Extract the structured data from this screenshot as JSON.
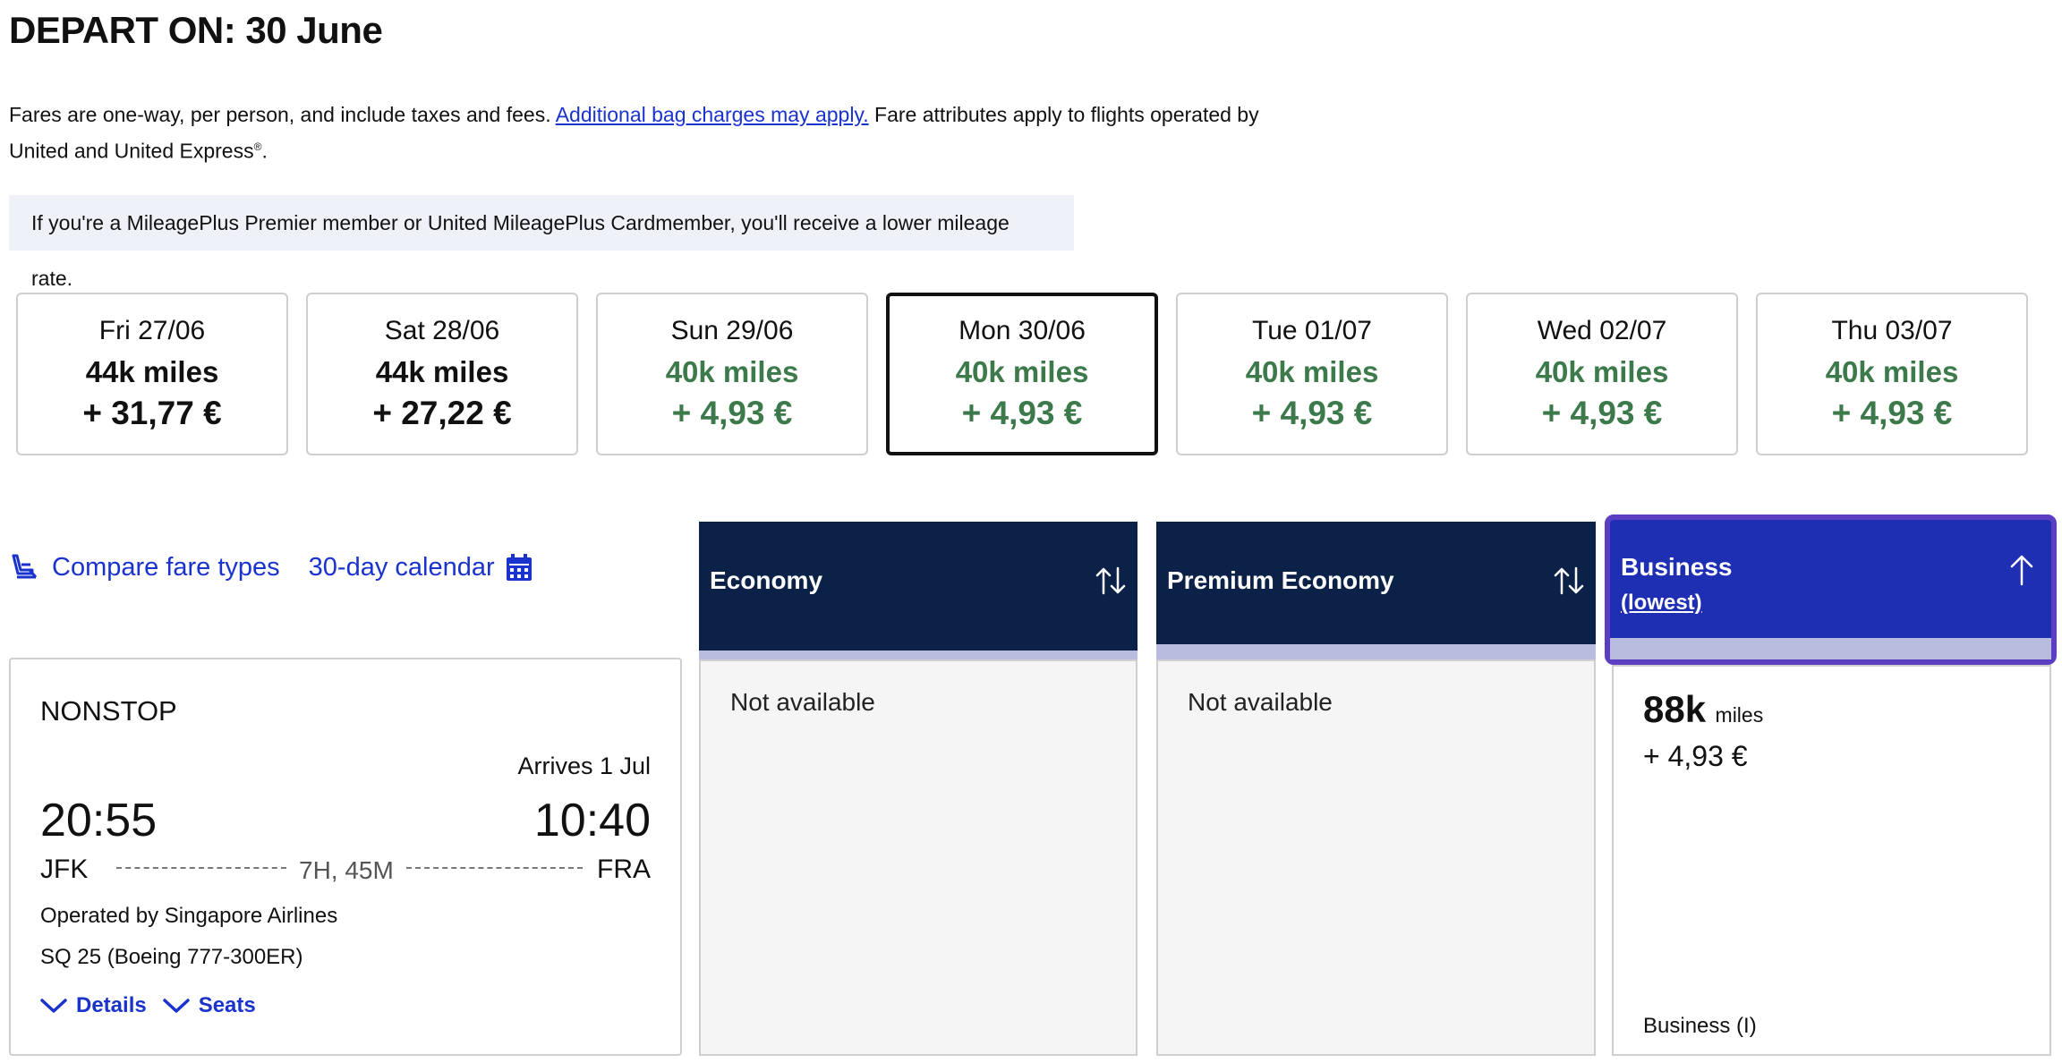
{
  "header": {
    "title": "DEPART ON: 30 June"
  },
  "fare_info": {
    "text_before": "Fares are one-way, per person, and include taxes and fees.",
    "link": "Additional bag charges may apply.",
    "text_after": "Fare attributes apply to flights operated by United and United Express",
    "registered_mark": "®",
    "period": "."
  },
  "notice": {
    "text": "If you're a MileagePlus Premier member or United MileagePlus Cardmember, you'll receive a lower mileage rate."
  },
  "dates": [
    {
      "label": "Fri 27/06",
      "miles": "44k miles",
      "price": "+ 31,77 €",
      "selected": false,
      "lowest": false
    },
    {
      "label": "Sat 28/06",
      "miles": "44k miles",
      "price": "+ 27,22 €",
      "selected": false,
      "lowest": false
    },
    {
      "label": "Sun 29/06",
      "miles": "40k miles",
      "price": "+ 4,93 €",
      "selected": false,
      "lowest": true
    },
    {
      "label": "Mon 30/06",
      "miles": "40k miles",
      "price": "+ 4,93 €",
      "selected": true,
      "lowest": true
    },
    {
      "label": "Tue 01/07",
      "miles": "40k miles",
      "price": "+ 4,93 €",
      "selected": false,
      "lowest": true
    },
    {
      "label": "Wed 02/07",
      "miles": "40k miles",
      "price": "+ 4,93 €",
      "selected": false,
      "lowest": true
    },
    {
      "label": "Thu 03/07",
      "miles": "40k miles",
      "price": "+ 4,93 €",
      "selected": false,
      "lowest": true
    }
  ],
  "tools": {
    "compare_label": "Compare fare types",
    "calendar_label": "30-day calendar"
  },
  "flight": {
    "stops": "NONSTOP",
    "arrives_note": "Arrives 1 Jul",
    "depart_time": "20:55",
    "arrive_time": "10:40",
    "origin": "JFK",
    "destination": "FRA",
    "duration": "7H, 45M",
    "operated_by": "Operated by Singapore Airlines",
    "aircraft": "SQ 25 (Boeing 777-300ER)",
    "details_label": "Details",
    "seats_label": "Seats"
  },
  "cabins": {
    "economy": {
      "label": "Economy",
      "status": "Not available"
    },
    "premium": {
      "label": "Premium Economy",
      "status": "Not available"
    },
    "business": {
      "label": "Business",
      "sort_note": "(lowest)",
      "miles_value": "88k",
      "miles_unit": "miles",
      "price": "+ 4,93 €",
      "fare_class": "Business (I)"
    }
  },
  "colors": {
    "link_blue": "#1a33cc",
    "header_navy": "#0c2147",
    "business_blue": "#1e2fb4",
    "business_border": "#5b3ec2",
    "lowest_green": "#3d7a4b"
  },
  "icons": {
    "compare": "seat-icon",
    "calendar": "calendar-icon",
    "sort_both": "sort-arrows-icon",
    "sort_up": "arrow-up-icon",
    "expand": "chevron-down-icon"
  }
}
